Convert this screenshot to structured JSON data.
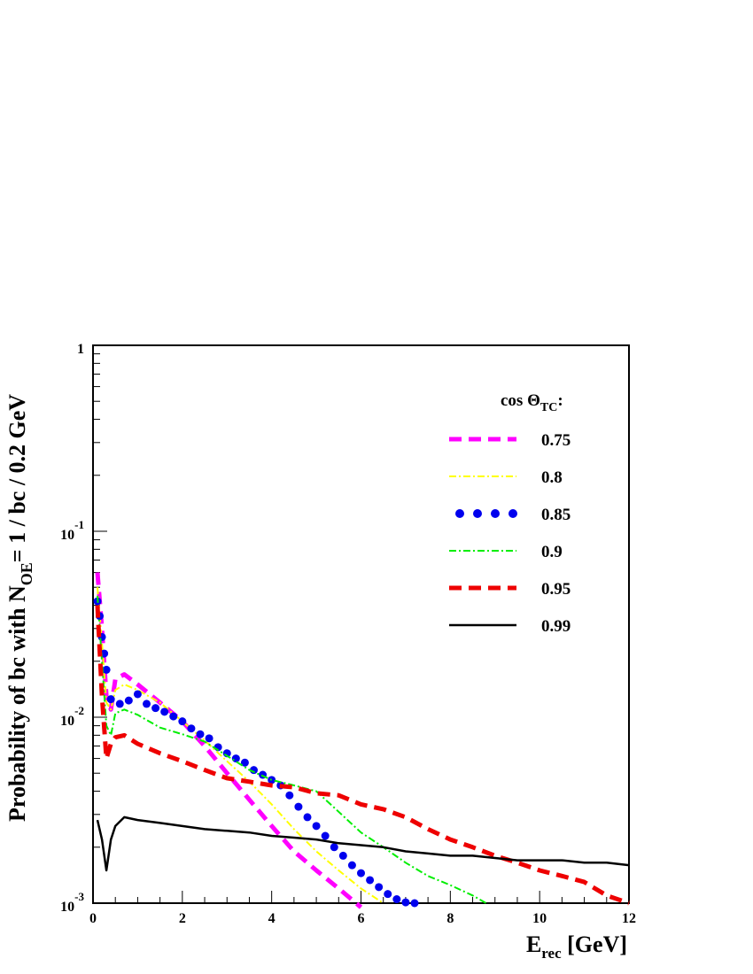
{
  "chart_data": {
    "type": "line",
    "title": "",
    "xlabel": "E",
    "xlabel_sub": "rec",
    "xlabel_unit": " [GeV]",
    "ylabel_a": "Probability of bc with N",
    "ylabel_sub": "OE",
    "ylabel_b": "= 1 / bc / 0.2 GeV",
    "xlim": [
      0,
      12
    ],
    "ylim": [
      0.001,
      1
    ],
    "yscale": "log",
    "grid": false,
    "legend_placement": "top-right",
    "legend_title": "cos Θ",
    "legend_title_sub": "TC",
    "legend_title_suffix": ":",
    "x_ticks": [
      {
        "value": 0,
        "label": "0"
      },
      {
        "value": 2,
        "label": "2"
      },
      {
        "value": 4,
        "label": "4"
      },
      {
        "value": 6,
        "label": "6"
      },
      {
        "value": 8,
        "label": "8"
      },
      {
        "value": 10,
        "label": "10"
      },
      {
        "value": 12,
        "label": "12"
      }
    ],
    "y_ticks": [
      {
        "value": 1,
        "base": "1",
        "exp": ""
      },
      {
        "value": 0.1,
        "base": "10",
        "exp": "-1"
      },
      {
        "value": 0.01,
        "base": "10",
        "exp": "-2"
      },
      {
        "value": 0.001,
        "base": "10",
        "exp": "-3"
      }
    ],
    "series": [
      {
        "name": "0.75",
        "color": "#ff00ff",
        "style": "dashed-thick",
        "x": [
          0.1,
          0.2,
          0.3,
          0.4,
          0.5,
          0.7,
          1.0,
          1.5,
          2.0,
          2.5,
          3.0,
          3.5,
          4.0,
          4.5,
          5.0,
          5.5,
          6.0
        ],
        "y": [
          0.06,
          0.03,
          0.013,
          0.011,
          0.016,
          0.017,
          0.015,
          0.012,
          0.0095,
          0.007,
          0.005,
          0.0036,
          0.0026,
          0.0019,
          0.0015,
          0.0012,
          0.00095
        ]
      },
      {
        "name": "0.8",
        "color": "#ffff00",
        "style": "dashdot-thin",
        "x": [
          0.1,
          0.2,
          0.3,
          0.4,
          0.5,
          0.7,
          1.0,
          1.5,
          2.0,
          2.5,
          3.0,
          3.5,
          4.0,
          4.5,
          5.0,
          5.5,
          6.0,
          6.5
        ],
        "y": [
          0.05,
          0.025,
          0.012,
          0.011,
          0.014,
          0.015,
          0.014,
          0.012,
          0.0095,
          0.0075,
          0.0058,
          0.0045,
          0.0034,
          0.0025,
          0.0019,
          0.0015,
          0.0012,
          0.001
        ]
      },
      {
        "name": "0.85",
        "color": "#0000ee",
        "style": "dots",
        "x": [
          0.1,
          0.15,
          0.2,
          0.25,
          0.3,
          0.4,
          0.6,
          0.8,
          1.0,
          1.2,
          1.4,
          1.6,
          1.8,
          2.0,
          2.2,
          2.4,
          2.6,
          2.8,
          3.0,
          3.2,
          3.4,
          3.6,
          3.8,
          4.0,
          4.2,
          4.4,
          4.6,
          4.8,
          5.0,
          5.2,
          5.4,
          5.6,
          5.8,
          6.0,
          6.2,
          6.4,
          6.6,
          6.8,
          7.0,
          7.2
        ],
        "y": [
          0.042,
          0.035,
          0.027,
          0.022,
          0.018,
          0.0125,
          0.0118,
          0.0123,
          0.0133,
          0.0118,
          0.0112,
          0.0107,
          0.0101,
          0.0095,
          0.0087,
          0.0081,
          0.0077,
          0.0069,
          0.0064,
          0.006,
          0.0057,
          0.0052,
          0.0049,
          0.0046,
          0.0043,
          0.0038,
          0.0033,
          0.0029,
          0.0026,
          0.0023,
          0.002,
          0.0018,
          0.0016,
          0.00145,
          0.00133,
          0.00122,
          0.00112,
          0.00105,
          0.00101,
          0.001
        ]
      },
      {
        "name": "0.9",
        "color": "#00ee00",
        "style": "dashdot-thin",
        "x": [
          0.1,
          0.2,
          0.3,
          0.4,
          0.5,
          0.7,
          1.0,
          1.5,
          2.0,
          2.5,
          3.0,
          3.5,
          4.0,
          4.5,
          5.0,
          5.5,
          6.0,
          6.5,
          7.0,
          7.5,
          8.0,
          8.5,
          8.8
        ],
        "y": [
          0.045,
          0.02,
          0.009,
          0.008,
          0.0105,
          0.011,
          0.0103,
          0.0088,
          0.0081,
          0.0074,
          0.0062,
          0.0052,
          0.0046,
          0.0043,
          0.004,
          0.0031,
          0.0024,
          0.002,
          0.00165,
          0.0014,
          0.00125,
          0.0011,
          0.001
        ]
      },
      {
        "name": "0.95",
        "color": "#ee0000",
        "style": "dashed-thick",
        "x": [
          0.1,
          0.2,
          0.3,
          0.4,
          0.5,
          0.7,
          1.0,
          1.5,
          2.0,
          2.5,
          3.0,
          3.5,
          4.0,
          4.5,
          5.0,
          5.5,
          6.0,
          6.5,
          7.0,
          7.5,
          8.0,
          8.5,
          9.0,
          9.5,
          10.0,
          10.5,
          11.0,
          11.5,
          12.0
        ],
        "y": [
          0.04,
          0.013,
          0.006,
          0.0072,
          0.0078,
          0.008,
          0.0072,
          0.0064,
          0.0058,
          0.0052,
          0.0047,
          0.0045,
          0.0043,
          0.0042,
          0.0039,
          0.0038,
          0.0034,
          0.0032,
          0.0029,
          0.0025,
          0.0022,
          0.002,
          0.0018,
          0.00165,
          0.0015,
          0.0014,
          0.0013,
          0.0011,
          0.001
        ]
      },
      {
        "name": "0.99",
        "color": "#000000",
        "style": "solid",
        "x": [
          0.1,
          0.2,
          0.3,
          0.4,
          0.5,
          0.7,
          1.0,
          1.5,
          2.0,
          2.5,
          3.0,
          3.5,
          4.0,
          4.5,
          5.0,
          5.5,
          6.0,
          6.5,
          7.0,
          7.5,
          8.0,
          8.5,
          9.0,
          9.5,
          10.0,
          10.5,
          11.0,
          11.5,
          12.0
        ],
        "y": [
          0.0028,
          0.0022,
          0.0015,
          0.0022,
          0.0026,
          0.0029,
          0.0028,
          0.0027,
          0.0026,
          0.0025,
          0.00245,
          0.0024,
          0.0023,
          0.00225,
          0.0022,
          0.0021,
          0.00205,
          0.002,
          0.0019,
          0.00185,
          0.0018,
          0.0018,
          0.00175,
          0.0017,
          0.0017,
          0.0017,
          0.00165,
          0.00165,
          0.0016
        ]
      }
    ]
  }
}
